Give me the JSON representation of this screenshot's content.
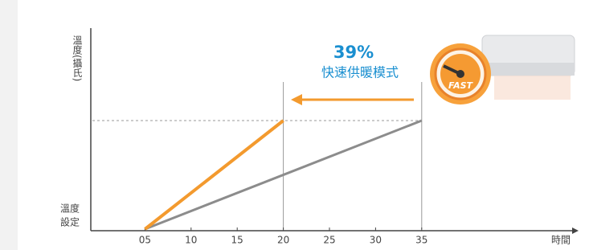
{
  "chart_data": {
    "type": "line",
    "y_label": "溫度(攝氏)",
    "y_origin_label": [
      "溫度",
      "設定"
    ],
    "x_label": "時間",
    "annotation": {
      "percent": "39%",
      "mode": "快速供暖模式",
      "badge": "FAST"
    },
    "xlim": [
      0,
      50
    ],
    "xticks": [
      {
        "value": 5,
        "label": "05"
      },
      10,
      15,
      20,
      25,
      30,
      35
    ],
    "ylim": [
      0,
      1
    ],
    "series": [
      {
        "color": "#f39a2e",
        "x": [
          5,
          20
        ],
        "values": [
          0,
          0.54
        ]
      },
      {
        "color": "#8c8c8c",
        "x": [
          5,
          35
        ],
        "values": [
          0,
          0.54
        ]
      }
    ]
  }
}
